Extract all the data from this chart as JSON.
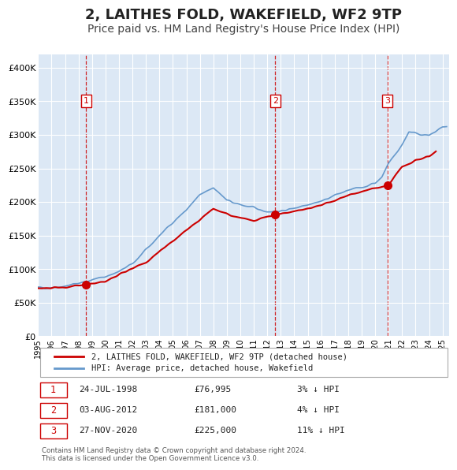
{
  "title": "2, LAITHES FOLD, WAKEFIELD, WF2 9TP",
  "subtitle": "Price paid vs. HM Land Registry's House Price Index (HPI)",
  "title_fontsize": 13,
  "subtitle_fontsize": 10,
  "plot_bg_color": "#dce8f5",
  "grid_color": "#ffffff",
  "ylabel_ticks": [
    "£0",
    "£50K",
    "£100K",
    "£150K",
    "£200K",
    "£250K",
    "£300K",
    "£350K",
    "£400K"
  ],
  "ytick_values": [
    0,
    50000,
    100000,
    150000,
    200000,
    250000,
    300000,
    350000,
    400000
  ],
  "ylim": [
    0,
    420000
  ],
  "xlim_start": 1995.0,
  "xlim_end": 2025.5,
  "sale_dates_num": [
    1998.56,
    2012.59,
    2020.91
  ],
  "sale_prices": [
    76995,
    181000,
    225000
  ],
  "sale_labels": [
    "1",
    "2",
    "3"
  ],
  "sale_marker_color": "#cc0000",
  "property_line_color": "#cc0000",
  "hpi_line_color": "#6699cc",
  "legend_property_label": "2, LAITHES FOLD, WAKEFIELD, WF2 9TP (detached house)",
  "legend_hpi_label": "HPI: Average price, detached house, Wakefield",
  "table_rows": [
    [
      "1",
      "24-JUL-1998",
      "£76,995",
      "3% ↓ HPI"
    ],
    [
      "2",
      "03-AUG-2012",
      "£181,000",
      "4% ↓ HPI"
    ],
    [
      "3",
      "27-NOV-2020",
      "£225,000",
      "11% ↓ HPI"
    ]
  ],
  "footnote": "Contains HM Land Registry data © Crown copyright and database right 2024.\nThis data is licensed under the Open Government Licence v3.0.",
  "xlabel_years": [
    1995,
    1996,
    1997,
    1998,
    1999,
    2000,
    2001,
    2002,
    2003,
    2004,
    2005,
    2006,
    2007,
    2008,
    2009,
    2010,
    2011,
    2012,
    2013,
    2014,
    2015,
    2016,
    2017,
    2018,
    2019,
    2020,
    2021,
    2022,
    2023,
    2024,
    2025
  ]
}
